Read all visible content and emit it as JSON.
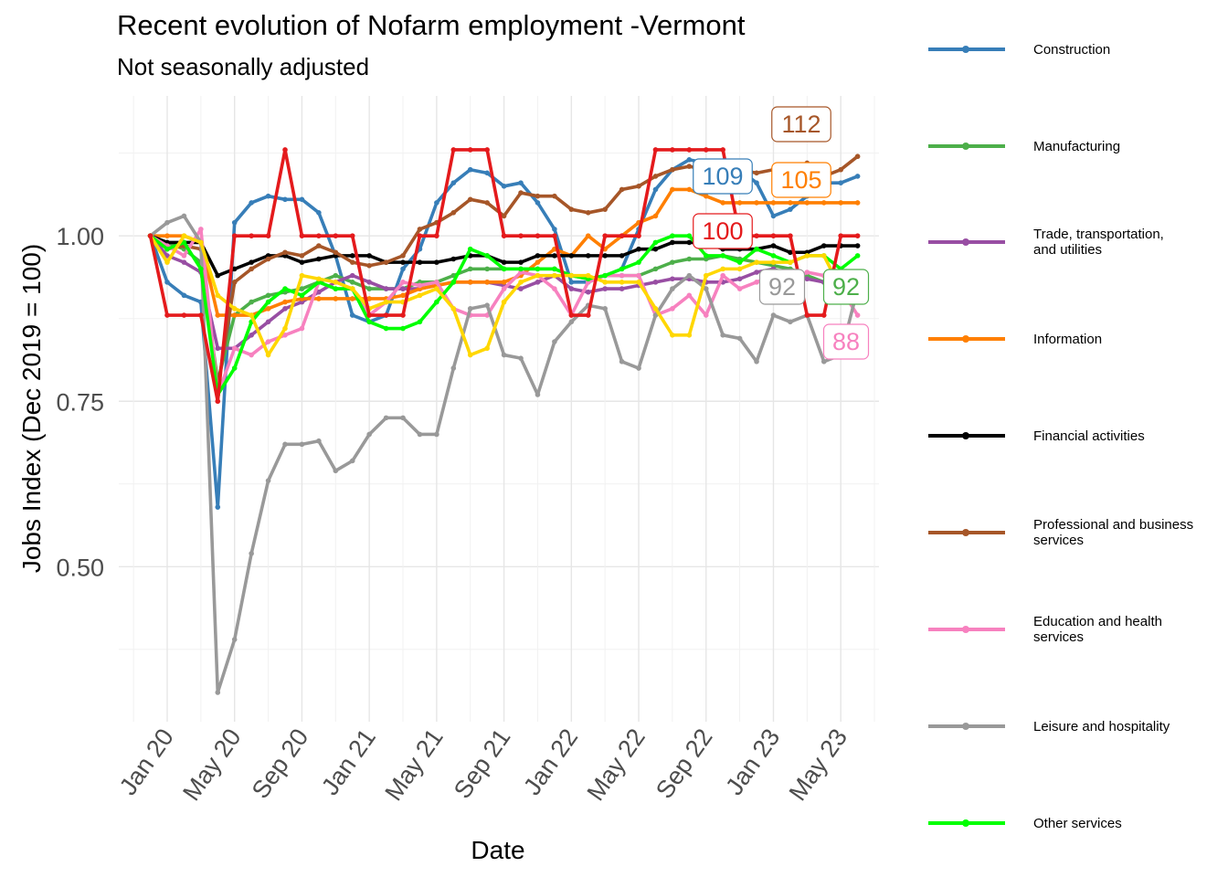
{
  "title": "Recent evolution of Nofarm employment -Vermont",
  "subtitle": "Not seasonally adjusted",
  "chart_data": {
    "type": "line",
    "xlabel": "Date",
    "ylabel": "Jobs Index (Dec 2019 = 100)",
    "x": [
      "2019-12",
      "2020-01",
      "2020-02",
      "2020-03",
      "2020-04",
      "2020-05",
      "2020-06",
      "2020-07",
      "2020-08",
      "2020-09",
      "2020-10",
      "2020-11",
      "2020-12",
      "2021-01",
      "2021-02",
      "2021-03",
      "2021-04",
      "2021-05",
      "2021-06",
      "2021-07",
      "2021-08",
      "2021-09",
      "2021-10",
      "2021-11",
      "2021-12",
      "2022-01",
      "2022-02",
      "2022-03",
      "2022-04",
      "2022-05",
      "2022-06",
      "2022-07",
      "2022-08",
      "2022-09",
      "2022-10",
      "2022-11",
      "2022-12",
      "2023-01",
      "2023-02",
      "2023-03",
      "2023-04",
      "2023-05",
      "2023-06"
    ],
    "x_ticks": [
      "Jan 20",
      "May 20",
      "Sep 20",
      "Jan 21",
      "May 21",
      "Sep 21",
      "Jan 22",
      "May 22",
      "Sep 22",
      "Jan 23",
      "May 23"
    ],
    "y_ticks": [
      "0.50",
      "0.75",
      "1.00"
    ],
    "ylim": [
      0.3,
      1.17
    ],
    "grid": true,
    "legend_position": "right",
    "series": [
      {
        "name": "Construction",
        "color": "#377EB8",
        "values": [
          1.0,
          0.93,
          0.91,
          0.9,
          0.59,
          1.02,
          1.05,
          1.06,
          1.055,
          1.055,
          1.035,
          0.97,
          0.88,
          0.87,
          0.88,
          0.95,
          0.98,
          1.05,
          1.08,
          1.1,
          1.095,
          1.075,
          1.08,
          1.05,
          1.01,
          0.93,
          0.93,
          0.94,
          0.95,
          1.01,
          1.07,
          1.1,
          1.115,
          1.11,
          1.09,
          1.1,
          1.08,
          1.03,
          1.04,
          1.06,
          1.08,
          1.08,
          1.09
        ]
      },
      {
        "name": "Manufacturing",
        "color": "#4DAF4A",
        "values": [
          1.0,
          0.99,
          0.98,
          0.96,
          0.78,
          0.88,
          0.9,
          0.91,
          0.915,
          0.92,
          0.93,
          0.94,
          0.93,
          0.92,
          0.92,
          0.92,
          0.93,
          0.93,
          0.94,
          0.95,
          0.95,
          0.95,
          0.95,
          0.95,
          0.95,
          0.94,
          0.935,
          0.94,
          0.94,
          0.94,
          0.95,
          0.96,
          0.965,
          0.965,
          0.97,
          0.965,
          0.96,
          0.955,
          0.95,
          0.94,
          0.93,
          0.92,
          0.92
        ]
      },
      {
        "name": "Trade, transportation,\nand utilities",
        "color": "#984EA3",
        "values": [
          1.0,
          0.97,
          0.96,
          0.945,
          0.83,
          0.83,
          0.85,
          0.87,
          0.89,
          0.9,
          0.915,
          0.93,
          0.94,
          0.93,
          0.92,
          0.92,
          0.92,
          0.925,
          0.93,
          0.93,
          0.93,
          0.925,
          0.92,
          0.93,
          0.94,
          0.92,
          0.915,
          0.92,
          0.92,
          0.925,
          0.93,
          0.935,
          0.935,
          0.93,
          0.93,
          0.935,
          0.945,
          0.95,
          0.94,
          0.935,
          0.93,
          0.94,
          0.94
        ]
      },
      {
        "name": "Information",
        "color": "#FF7F00",
        "values": [
          1.0,
          1.0,
          1.0,
          0.99,
          0.88,
          0.88,
          0.88,
          0.89,
          0.9,
          0.905,
          0.905,
          0.905,
          0.905,
          0.905,
          0.905,
          0.91,
          0.92,
          0.925,
          0.93,
          0.93,
          0.93,
          0.93,
          0.94,
          0.96,
          0.98,
          0.97,
          1.0,
          0.98,
          1.0,
          1.02,
          1.03,
          1.07,
          1.07,
          1.06,
          1.05,
          1.05,
          1.05,
          1.05,
          1.05,
          1.05,
          1.05,
          1.05,
          1.05
        ]
      },
      {
        "name": "Financial activities",
        "color": "#000000",
        "values": [
          1.0,
          0.99,
          0.99,
          0.99,
          0.94,
          0.95,
          0.96,
          0.97,
          0.97,
          0.96,
          0.965,
          0.97,
          0.97,
          0.97,
          0.96,
          0.96,
          0.96,
          0.96,
          0.965,
          0.97,
          0.97,
          0.96,
          0.96,
          0.97,
          0.97,
          0.97,
          0.97,
          0.97,
          0.97,
          0.98,
          0.98,
          0.99,
          0.99,
          0.99,
          0.98,
          0.98,
          0.98,
          0.985,
          0.975,
          0.975,
          0.985,
          0.985,
          0.985
        ]
      },
      {
        "name": "Professional and business\nservices",
        "color": "#A65628",
        "values": [
          1.0,
          0.98,
          0.985,
          0.98,
          0.77,
          0.93,
          0.95,
          0.965,
          0.975,
          0.97,
          0.985,
          0.975,
          0.96,
          0.955,
          0.96,
          0.97,
          1.01,
          1.02,
          1.035,
          1.055,
          1.05,
          1.03,
          1.065,
          1.06,
          1.06,
          1.04,
          1.035,
          1.04,
          1.07,
          1.075,
          1.09,
          1.1,
          1.105,
          1.1,
          1.085,
          1.1,
          1.095,
          1.1,
          1.07,
          1.11,
          1.09,
          1.1,
          1.12
        ]
      },
      {
        "name": "Education and health\nservices",
        "color": "#F781BF",
        "values": [
          1.0,
          0.985,
          0.97,
          1.01,
          0.76,
          0.83,
          0.82,
          0.84,
          0.85,
          0.86,
          0.93,
          0.92,
          0.92,
          0.88,
          0.9,
          0.93,
          0.925,
          0.93,
          0.89,
          0.88,
          0.88,
          0.92,
          0.945,
          0.94,
          0.92,
          0.88,
          0.93,
          0.94,
          0.94,
          0.94,
          0.88,
          0.89,
          0.91,
          0.88,
          0.94,
          0.92,
          0.93,
          0.94,
          0.93,
          0.945,
          0.94,
          0.92,
          0.88
        ]
      },
      {
        "name": "Leisure and hospitality",
        "color": "#999999",
        "values": [
          1.0,
          1.02,
          1.03,
          0.99,
          0.31,
          0.39,
          0.52,
          0.63,
          0.685,
          0.685,
          0.69,
          0.645,
          0.66,
          0.7,
          0.725,
          0.725,
          0.7,
          0.7,
          0.8,
          0.89,
          0.895,
          0.82,
          0.815,
          0.76,
          0.84,
          0.87,
          0.895,
          0.89,
          0.81,
          0.8,
          0.88,
          0.92,
          0.94,
          0.92,
          0.85,
          0.845,
          0.81,
          0.88,
          0.87,
          0.88,
          0.81,
          0.82,
          0.92
        ]
      },
      {
        "name": "Other services",
        "color": "#00FF00",
        "values": [
          1.0,
          0.98,
          0.99,
          0.95,
          0.76,
          0.8,
          0.87,
          0.9,
          0.92,
          0.91,
          0.93,
          0.92,
          0.92,
          0.87,
          0.86,
          0.86,
          0.87,
          0.9,
          0.93,
          0.98,
          0.97,
          0.95,
          0.95,
          0.95,
          0.95,
          0.94,
          0.935,
          0.94,
          0.95,
          0.96,
          0.99,
          1.0,
          1.0,
          0.97,
          0.97,
          0.96,
          0.98,
          0.97,
          0.96,
          0.97,
          0.97,
          0.95,
          0.97
        ]
      },
      {
        "name": "",
        "color": "#FFD700",
        "values": [
          1.0,
          0.96,
          1.0,
          0.99,
          0.91,
          0.89,
          0.88,
          0.82,
          0.86,
          0.94,
          0.935,
          0.93,
          0.92,
          0.89,
          0.9,
          0.9,
          0.91,
          0.92,
          0.89,
          0.82,
          0.83,
          0.9,
          0.93,
          0.94,
          0.94,
          0.94,
          0.94,
          0.93,
          0.93,
          0.93,
          0.89,
          0.85,
          0.85,
          0.94,
          0.95,
          0.95,
          0.96,
          0.96,
          0.96,
          0.97,
          0.97,
          0.92,
          0.93
        ]
      },
      {
        "name": "",
        "color": "#E41A1C",
        "values": [
          1.0,
          0.88,
          0.88,
          0.88,
          0.75,
          1.0,
          1.0,
          1.0,
          1.13,
          1.0,
          1.0,
          1.0,
          1.0,
          0.88,
          0.88,
          0.88,
          1.0,
          1.0,
          1.13,
          1.13,
          1.13,
          1.0,
          1.0,
          1.0,
          1.0,
          0.88,
          0.88,
          1.0,
          1.0,
          1.0,
          1.13,
          1.13,
          1.13,
          1.13,
          1.13,
          1.0,
          1.0,
          1.0,
          1.0,
          0.88,
          0.88,
          1.0,
          1.0
        ]
      }
    ],
    "labels": [
      {
        "text": "112",
        "color": "#A65628"
      },
      {
        "text": "109",
        "color": "#377EB8"
      },
      {
        "text": "105",
        "color": "#FF7F00"
      },
      {
        "text": "100",
        "color": "#E41A1C"
      },
      {
        "text": "92",
        "color": "#999999"
      },
      {
        "text": "92",
        "color": "#4DAF4A"
      },
      {
        "text": "88",
        "color": "#F781BF"
      }
    ]
  }
}
